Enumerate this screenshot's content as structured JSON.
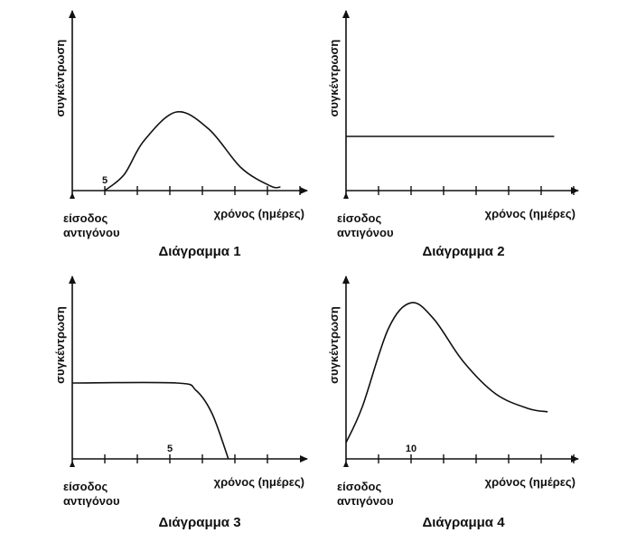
{
  "chart_data": [
    {
      "type": "line",
      "caption": "Διάγραμμα 1",
      "ylabel": "συγκέντρωση",
      "xlabel": "χρόνος (ημέρες)",
      "origin_label_1": "είσοδος",
      "origin_label_2": "αντιγόνου",
      "x_tick_count": 7,
      "x_tick_labels": [
        {
          "tick": 1,
          "label": "5"
        }
      ],
      "series": [
        {
          "x": [
            1,
            1.6,
            2.2,
            3.2,
            4.2,
            5.2,
            6.1,
            6.4
          ],
          "y": [
            0,
            0.18,
            0.55,
            0.87,
            0.68,
            0.25,
            0.05,
            0.04
          ]
        }
      ]
    },
    {
      "type": "line",
      "caption": "Διάγραμμα 2",
      "ylabel": "συγκέντρωση",
      "xlabel": "χρόνος (ημέρες)",
      "origin_label_1": "είσοδος",
      "origin_label_2": "αντιγόνου",
      "x_tick_count": 7,
      "x_tick_labels": [],
      "series": [
        {
          "x": [
            0,
            6.4
          ],
          "y": [
            0.6,
            0.6
          ]
        }
      ]
    },
    {
      "type": "line",
      "caption": "Διάγραμμα 3",
      "ylabel": "συγκέντρωση",
      "xlabel": "χρόνος (ημέρες)",
      "origin_label_1": "είσοδος",
      "origin_label_2": "αντιγόνου",
      "x_tick_count": 6,
      "x_tick_labels": [
        {
          "tick": 3,
          "label": "5"
        }
      ],
      "series": [
        {
          "x": [
            0,
            3.2,
            3.8,
            4.3,
            4.8
          ],
          "y": [
            0.42,
            0.42,
            0.38,
            0.25,
            0.0
          ]
        }
      ]
    },
    {
      "type": "line",
      "caption": "Διάγραμμα 4",
      "ylabel": "συγκέντρωση",
      "xlabel": "χρόνος (ημέρες)",
      "origin_label_1": "είσοδος",
      "origin_label_2": "αντιγόνου",
      "x_tick_count": 7,
      "x_tick_labels": [
        {
          "tick": 2,
          "label": "10"
        }
      ],
      "series": [
        {
          "x": [
            0,
            0.5,
            1.3,
            2.0,
            2.7,
            3.6,
            4.6,
            5.6,
            6.2
          ],
          "y": [
            0.1,
            0.32,
            0.8,
            0.96,
            0.86,
            0.6,
            0.4,
            0.31,
            0.29
          ]
        }
      ]
    }
  ]
}
